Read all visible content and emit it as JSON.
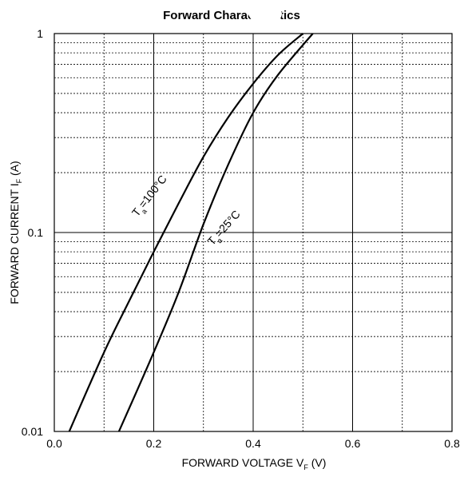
{
  "chart_data": {
    "type": "line",
    "title": "Forward Characteristics",
    "xlabel": {
      "main": "FORWARD VOLTAGE V",
      "sub": "F",
      "unit": " (V)"
    },
    "ylabel": {
      "main": "FORWARD CURRENT I",
      "sub": "F",
      "unit": " (A)"
    },
    "x_scale": "linear",
    "y_scale": "log",
    "xlim": [
      0,
      0.8
    ],
    "ylim": [
      0.01,
      1
    ],
    "x_ticks": [
      0,
      0.2,
      0.4,
      0.6,
      0.8
    ],
    "x_tick_labels": [
      "0.0",
      "0.2",
      "0.4",
      "0.6",
      "0.8"
    ],
    "y_ticks": [
      0.01,
      0.1,
      1
    ],
    "y_tick_labels": [
      "0.01",
      "0.1",
      "1"
    ],
    "grid": true,
    "series": [
      {
        "label": {
          "main": "T",
          "sub": "a",
          "rest": "=100°C"
        },
        "x": [
          0.03,
          0.1,
          0.15,
          0.2,
          0.25,
          0.3,
          0.35,
          0.4,
          0.45,
          0.5
        ],
        "y": [
          0.01,
          0.025,
          0.045,
          0.08,
          0.14,
          0.24,
          0.38,
          0.56,
          0.78,
          1.0
        ]
      },
      {
        "label": {
          "main": "T",
          "sub": "a",
          "rest": "=25°C"
        },
        "x": [
          0.13,
          0.2,
          0.25,
          0.3,
          0.35,
          0.4,
          0.45,
          0.52
        ],
        "y": [
          0.01,
          0.025,
          0.05,
          0.11,
          0.22,
          0.4,
          0.62,
          1.0
        ]
      }
    ]
  }
}
